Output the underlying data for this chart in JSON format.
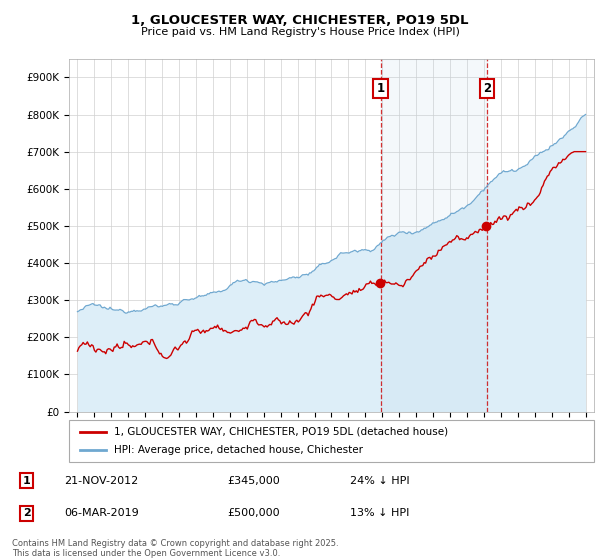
{
  "title": "1, GLOUCESTER WAY, CHICHESTER, PO19 5DL",
  "subtitle": "Price paid vs. HM Land Registry's House Price Index (HPI)",
  "ylim": [
    0,
    950000
  ],
  "yticks": [
    0,
    100000,
    200000,
    300000,
    400000,
    500000,
    600000,
    700000,
    800000,
    900000
  ],
  "ytick_labels": [
    "£0",
    "£100K",
    "£200K",
    "£300K",
    "£400K",
    "£500K",
    "£600K",
    "£700K",
    "£800K",
    "£900K"
  ],
  "color_red": "#cc0000",
  "color_blue": "#6fa8d0",
  "color_blue_fill": "#ddeef8",
  "transaction1_x": 2012.9,
  "transaction1_y": 345000,
  "transaction2_x": 2019.18,
  "transaction2_y": 500000,
  "legend_label1": "1, GLOUCESTER WAY, CHICHESTER, PO19 5DL (detached house)",
  "legend_label2": "HPI: Average price, detached house, Chichester",
  "ann1_date": "21-NOV-2012",
  "ann1_price": "£345,000",
  "ann1_hpi": "24% ↓ HPI",
  "ann2_date": "06-MAR-2019",
  "ann2_price": "£500,000",
  "ann2_hpi": "13% ↓ HPI",
  "footer": "Contains HM Land Registry data © Crown copyright and database right 2025.\nThis data is licensed under the Open Government Licence v3.0.",
  "xmin": 1994.5,
  "xmax": 2025.5
}
